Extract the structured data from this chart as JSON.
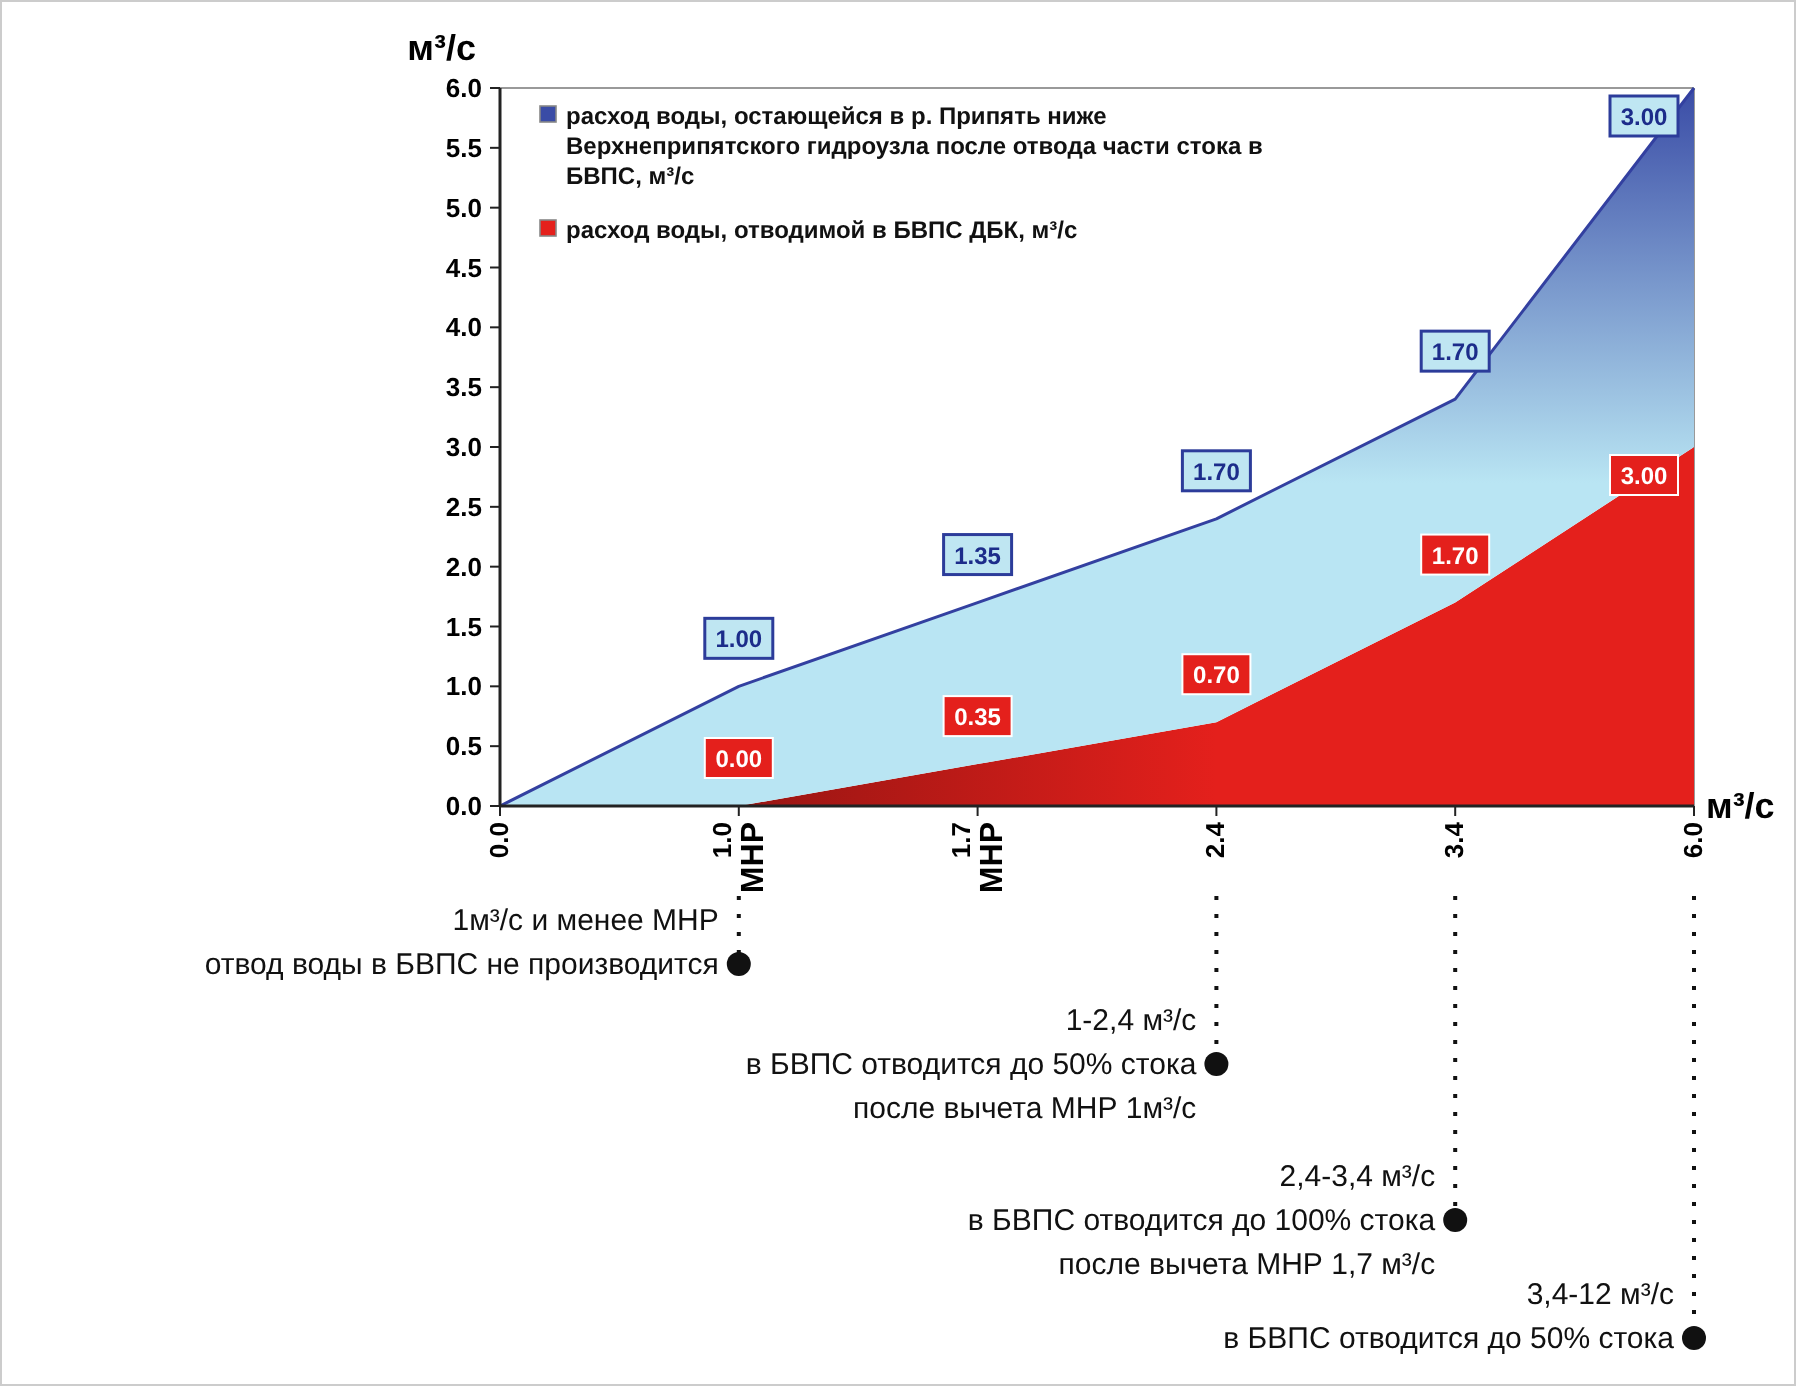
{
  "chart_data": {
    "type": "area",
    "stacked": true,
    "categories": [
      "0.0",
      "1.0\nМНР",
      "1.7\nМНР",
      "2.4",
      "3.4",
      "6.0"
    ],
    "series": [
      {
        "name": "расход воды, отводимой в БВПС ДБК, м³/с",
        "color": "#e4201c",
        "values": [
          0,
          0,
          0.35,
          0.7,
          1.7,
          3.0
        ],
        "value_labels": [
          null,
          "0.00",
          "0.35",
          "0.70",
          "1.70",
          "3.00"
        ]
      },
      {
        "name": "расход воды, остающейся в р. Припять ниже Верхнеприпятского гидроузла после отвода части стока в БВПС, м³/с",
        "color": "#3a4ca6",
        "values": [
          0,
          1.0,
          1.35,
          1.7,
          1.7,
          3.0
        ],
        "value_labels": [
          null,
          "1.00",
          "1.35",
          "1.70",
          "1.70",
          "3.00"
        ]
      }
    ],
    "ylim": [
      0,
      6
    ],
    "yticks": [
      {
        "value": 0,
        "label": "0.0"
      },
      {
        "value": 0.5,
        "label": "0.5"
      },
      {
        "value": 1,
        "label": "1.0"
      },
      {
        "value": 1.5,
        "label": "1.5"
      },
      {
        "value": 2,
        "label": "2.0"
      },
      {
        "value": 2.5,
        "label": "2.5"
      },
      {
        "value": 3,
        "label": "3.0"
      },
      {
        "value": 3.5,
        "label": "3.5"
      },
      {
        "value": 4,
        "label": "4.0"
      },
      {
        "value": 4.5,
        "label": "4.5"
      },
      {
        "value": 5,
        "label": "5.0"
      },
      {
        "value": 5.5,
        "label": "5.5"
      },
      {
        "value": 6,
        "label": "6.0"
      }
    ],
    "ylabel": "м³/с",
    "xlabel": "м³/с",
    "legend": "top left",
    "grid": false,
    "annotations": [
      "1м³/с и менее МНР\nотвод воды в БВПС не производится",
      "1-2,4 м³/с\nв БВПС отводится до 50% стока\nпосле вычета МНР 1м³/с",
      "2,4-3,4 м³/с\nв БВПС отводится до 100% стока\nпосле вычета МНР 1,7 м³/с",
      "3,4-12 м³/с\nв БВПС отводится до 50% стока"
    ]
  }
}
